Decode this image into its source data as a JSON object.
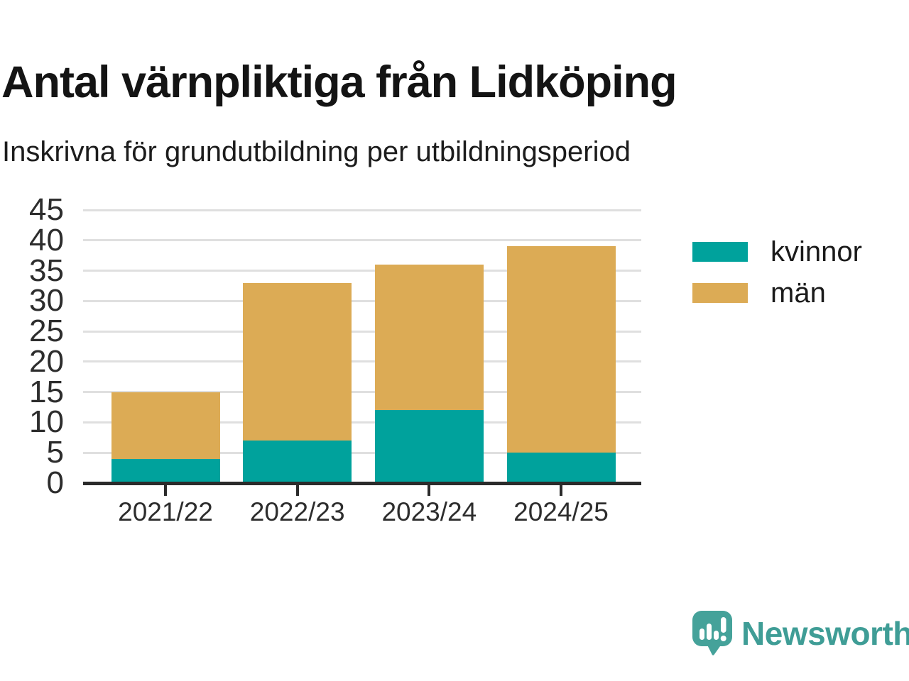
{
  "header": {
    "title": "Antal värnpliktiga från Lidköping",
    "subtitle": "Inskrivna för grundutbildning per utbildningsperiod"
  },
  "chart_data": {
    "type": "bar",
    "stacked": true,
    "title": "Antal värnpliktiga från Lidköping",
    "subtitle": "Inskrivna för grundutbildning per utbildningsperiod",
    "categories": [
      "2021/22",
      "2022/23",
      "2023/24",
      "2024/25"
    ],
    "series": [
      {
        "name": "kvinnor",
        "color": "#00a29c",
        "values": [
          4,
          7,
          12,
          5
        ]
      },
      {
        "name": "män",
        "color": "#dcab55",
        "values": [
          11,
          26,
          24,
          34
        ]
      }
    ],
    "totals": [
      15,
      33,
      36,
      39
    ],
    "xlabel": "",
    "ylabel": "",
    "ylim": [
      0,
      45
    ],
    "yticks": [
      0,
      5,
      10,
      15,
      20,
      25,
      30,
      35,
      40,
      45
    ],
    "grid": true,
    "legend_position": "right"
  },
  "branding": {
    "name": "Newsworthy",
    "icon": "newsworthy-bubble-chart-icon",
    "color": "#3f9d96"
  },
  "colors": {
    "kvinnor": "#00a29c",
    "man": "#dcab55",
    "gridline": "#dfdfdf",
    "axis": "#2b2b2b",
    "text": "#2d2d2d",
    "logo_teal": "#45a29a"
  }
}
